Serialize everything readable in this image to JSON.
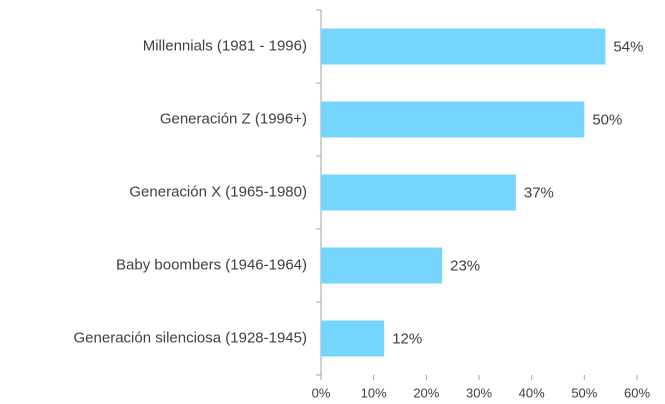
{
  "chart_data": {
    "type": "hbar",
    "categories": [
      "Millennials (1981 - 1996)",
      "Generación Z (1996+)",
      "Generación X (1965-1980)",
      "Baby boombers (1946-1964)",
      "Generación silenciosa (1928-1945)"
    ],
    "values": [
      54,
      50,
      37,
      23,
      12
    ],
    "value_labels": [
      "54%",
      "50%",
      "37%",
      "23%",
      "12%"
    ],
    "color": "#75d5fd",
    "xlim": [
      0,
      60
    ],
    "xticks": [
      {
        "value": 0,
        "label": "0%"
      },
      {
        "value": 10,
        "label": "10%"
      },
      {
        "value": 20,
        "label": "20%"
      },
      {
        "value": 30,
        "label": "30%"
      },
      {
        "value": 40,
        "label": "40%"
      },
      {
        "value": 50,
        "label": "50%"
      },
      {
        "value": 60,
        "label": "60%"
      }
    ],
    "grid": false
  }
}
